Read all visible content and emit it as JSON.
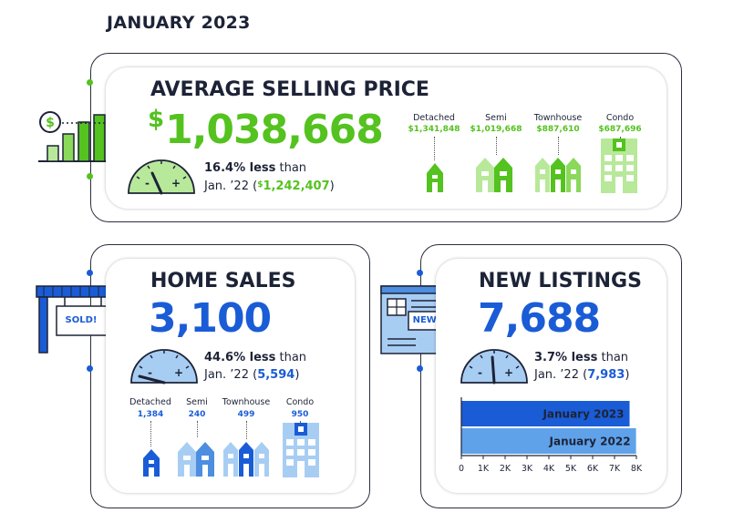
{
  "header": {
    "month": "JANUARY 2023"
  },
  "price": {
    "title": "AVERAGE SELLING PRICE",
    "currency": "$",
    "value": "1,038,668",
    "pct": "16.4% less",
    "than": " than",
    "prev_prefix": "Jan. ’22 (",
    "prev_currency": "$",
    "prev_value": "1,242,407",
    "prev_suffix": ")",
    "icon": "price-bar-chart-icon",
    "gauge_icon": "gauge-icon",
    "types": [
      {
        "label": "Detached",
        "value": "$1,341,848"
      },
      {
        "label": "Semi",
        "value": "$1,019,668"
      },
      {
        "label": "Townhouse",
        "value": "$887,610"
      },
      {
        "label": "Condo",
        "value": "$687,696"
      }
    ]
  },
  "sales": {
    "title": "HOME SALES",
    "value": "3,100",
    "pct": "44.6% less",
    "than": " than",
    "prev_prefix": "Jan. ’22 (",
    "prev_value": "5,594",
    "prev_suffix": ")",
    "sign_text": "SOLD!",
    "icon": "sold-sign-icon",
    "types": [
      {
        "label": "Detached",
        "value": "1,384"
      },
      {
        "label": "Semi",
        "value": "240"
      },
      {
        "label": "Townhouse",
        "value": "499"
      },
      {
        "label": "Condo",
        "value": "950"
      }
    ]
  },
  "listings": {
    "title": "NEW LISTINGS",
    "value": "7,688",
    "pct": "3.7% less",
    "than": " than",
    "prev_prefix": "Jan. ’22 (",
    "prev_value": "7,983",
    "prev_suffix": ")",
    "badge_text": "NEW!",
    "icon": "new-listing-document-icon"
  },
  "chart_data": {
    "type": "bar",
    "orientation": "horizontal",
    "categories": [
      "January 2023",
      "January 2022"
    ],
    "values": [
      7688,
      7983
    ],
    "xlim": [
      0,
      8000
    ],
    "xticks": [
      "0",
      "1K",
      "2K",
      "3K",
      "4K",
      "5K",
      "6K",
      "7K",
      "8K"
    ],
    "tick_values": [
      0,
      1000,
      2000,
      3000,
      4000,
      5000,
      6000,
      7000,
      8000
    ],
    "colors": [
      "#1a5cd6",
      "#5fa2ea"
    ],
    "labels_inside": true
  },
  "colors": {
    "green": "#54c21f",
    "green_light": "#b8e89a",
    "green_mid": "#8ad95a",
    "blue": "#1a5cd6",
    "blue_mid": "#4d8ee0",
    "blue_light": "#a8cdf3",
    "dark": "#1d2337"
  }
}
